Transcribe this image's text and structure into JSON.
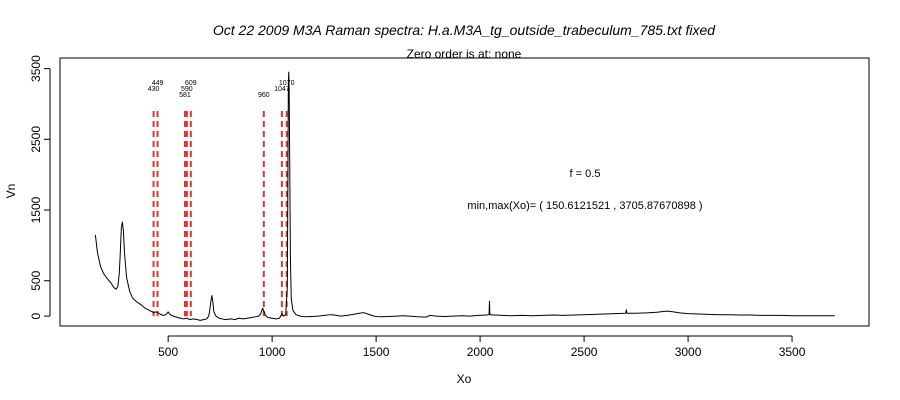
{
  "chart_data": {
    "type": "line",
    "title": "Oct 22 2009 M3A Raman spectra: H.a.M3A_tg_outside_trabeculum_785.txt fixed",
    "subtitle": "Zero order is at:  none",
    "xlabel": "Xo",
    "ylabel": "Vn",
    "xlim": [
      -20,
      3870
    ],
    "ylim": [
      -140,
      3650
    ],
    "x_ticks": [
      500,
      1000,
      1500,
      2000,
      2500,
      3000,
      3500
    ],
    "y_ticks": [
      0,
      500,
      1500,
      2500,
      3500
    ],
    "grid": false,
    "legend": "none",
    "annotations": {
      "f_text": "f =  0.5",
      "minmax_text": "min,max(Xo)= ( 150.6121521 , 3705.87670898 )"
    },
    "peak_markers": {
      "color": "#e8332a",
      "style": "dashed",
      "y_top": 2900,
      "labels": [
        {
          "x": 430,
          "label": "430"
        },
        {
          "x": 449,
          "label": "449"
        },
        {
          "x": 581,
          "label": "581"
        },
        {
          "x": 590,
          "label": "590"
        },
        {
          "x": 609,
          "label": "609"
        },
        {
          "x": 960,
          "label": "960"
        },
        {
          "x": 1047,
          "label": "1047"
        },
        {
          "x": 1070,
          "label": "1070"
        }
      ]
    },
    "series": [
      {
        "color": "#000000",
        "points": [
          [
            150,
            1150
          ],
          [
            160,
            900
          ],
          [
            175,
            700
          ],
          [
            190,
            600
          ],
          [
            210,
            520
          ],
          [
            225,
            470
          ],
          [
            240,
            400
          ],
          [
            250,
            380
          ],
          [
            258,
            420
          ],
          [
            265,
            600
          ],
          [
            270,
            900
          ],
          [
            275,
            1250
          ],
          [
            280,
            1330
          ],
          [
            285,
            1200
          ],
          [
            290,
            900
          ],
          [
            300,
            550
          ],
          [
            315,
            350
          ],
          [
            330,
            250
          ],
          [
            350,
            200
          ],
          [
            370,
            160
          ],
          [
            390,
            110
          ],
          [
            410,
            80
          ],
          [
            430,
            50
          ],
          [
            445,
            60
          ],
          [
            460,
            30
          ],
          [
            475,
            10
          ],
          [
            490,
            20
          ],
          [
            500,
            60
          ],
          [
            510,
            20
          ],
          [
            525,
            0
          ],
          [
            545,
            -20
          ],
          [
            560,
            -30
          ],
          [
            575,
            -40
          ],
          [
            590,
            -30
          ],
          [
            605,
            -50
          ],
          [
            620,
            -40
          ],
          [
            640,
            -50
          ],
          [
            655,
            -60
          ],
          [
            670,
            -50
          ],
          [
            685,
            -40
          ],
          [
            695,
            0
          ],
          [
            700,
            80
          ],
          [
            705,
            200
          ],
          [
            710,
            290
          ],
          [
            715,
            200
          ],
          [
            720,
            60
          ],
          [
            730,
            0
          ],
          [
            745,
            -30
          ],
          [
            760,
            -40
          ],
          [
            775,
            -50
          ],
          [
            790,
            -45
          ],
          [
            805,
            -40
          ],
          [
            820,
            -50
          ],
          [
            840,
            -30
          ],
          [
            860,
            -40
          ],
          [
            880,
            -30
          ],
          [
            900,
            -20
          ],
          [
            920,
            -10
          ],
          [
            935,
            0
          ],
          [
            945,
            30
          ],
          [
            950,
            80
          ],
          [
            955,
            110
          ],
          [
            960,
            70
          ],
          [
            968,
            10
          ],
          [
            980,
            -20
          ],
          [
            1000,
            -30
          ],
          [
            1020,
            -40
          ],
          [
            1035,
            -30
          ],
          [
            1047,
            30
          ],
          [
            1055,
            0
          ],
          [
            1065,
            20
          ],
          [
            1073,
            400
          ],
          [
            1076,
            2000
          ],
          [
            1078,
            3300
          ],
          [
            1080,
            3450
          ],
          [
            1082,
            3200
          ],
          [
            1085,
            2000
          ],
          [
            1088,
            800
          ],
          [
            1092,
            250
          ],
          [
            1100,
            80
          ],
          [
            1115,
            20
          ],
          [
            1135,
            0
          ],
          [
            1160,
            -10
          ],
          [
            1190,
            -5
          ],
          [
            1220,
            0
          ],
          [
            1250,
            10
          ],
          [
            1280,
            20
          ],
          [
            1300,
            15
          ],
          [
            1330,
            0
          ],
          [
            1360,
            10
          ],
          [
            1390,
            25
          ],
          [
            1420,
            40
          ],
          [
            1440,
            50
          ],
          [
            1460,
            30
          ],
          [
            1490,
            0
          ],
          [
            1520,
            -10
          ],
          [
            1560,
            -5
          ],
          [
            1600,
            0
          ],
          [
            1630,
            5
          ],
          [
            1660,
            0
          ],
          [
            1700,
            -10
          ],
          [
            1740,
            -15
          ],
          [
            1760,
            10
          ],
          [
            1790,
            0
          ],
          [
            1830,
            -5
          ],
          [
            1870,
            0
          ],
          [
            1910,
            5
          ],
          [
            1950,
            0
          ],
          [
            1990,
            10
          ],
          [
            2030,
            15
          ],
          [
            2043,
            20
          ],
          [
            2045,
            210
          ],
          [
            2047,
            20
          ],
          [
            2070,
            15
          ],
          [
            2110,
            10
          ],
          [
            2150,
            5
          ],
          [
            2200,
            10
          ],
          [
            2250,
            5
          ],
          [
            2300,
            10
          ],
          [
            2350,
            15
          ],
          [
            2400,
            10
          ],
          [
            2450,
            15
          ],
          [
            2500,
            20
          ],
          [
            2550,
            25
          ],
          [
            2600,
            30
          ],
          [
            2650,
            35
          ],
          [
            2700,
            40
          ],
          [
            2703,
            90
          ],
          [
            2706,
            40
          ],
          [
            2750,
            40
          ],
          [
            2800,
            45
          ],
          [
            2850,
            55
          ],
          [
            2880,
            65
          ],
          [
            2900,
            70
          ],
          [
            2930,
            60
          ],
          [
            2960,
            45
          ],
          [
            3000,
            35
          ],
          [
            3050,
            30
          ],
          [
            3100,
            25
          ],
          [
            3150,
            20
          ],
          [
            3200,
            20
          ],
          [
            3250,
            15
          ],
          [
            3300,
            15
          ],
          [
            3350,
            10
          ],
          [
            3400,
            10
          ],
          [
            3450,
            10
          ],
          [
            3500,
            5
          ],
          [
            3550,
            5
          ],
          [
            3600,
            5
          ],
          [
            3650,
            5
          ],
          [
            3705,
            5
          ]
        ]
      }
    ]
  }
}
